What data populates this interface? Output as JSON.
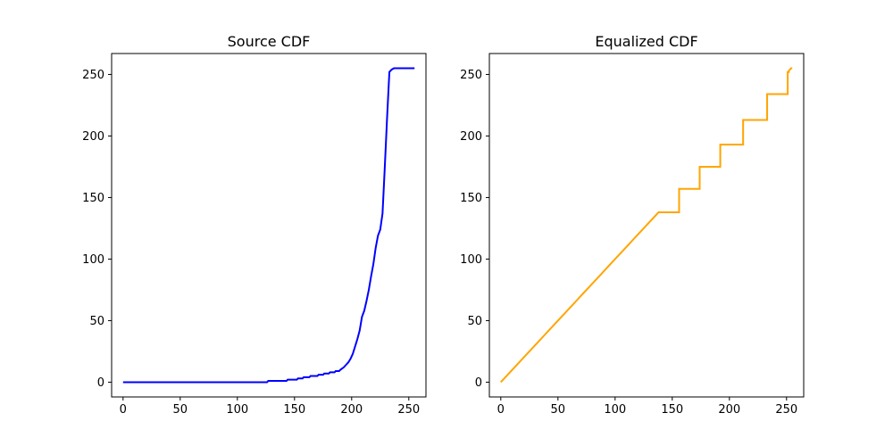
{
  "figure": {
    "background": "#ffffff"
  },
  "chart_data": [
    {
      "type": "line",
      "title": "Source CDF",
      "xlabel": "",
      "ylabel": "",
      "xlim": [
        -10,
        265
      ],
      "ylim": [
        -12,
        267
      ],
      "xticks": [
        0,
        50,
        100,
        150,
        200,
        250
      ],
      "yticks": [
        0,
        50,
        100,
        150,
        200,
        250
      ],
      "grid": false,
      "color": "#0000ff",
      "series": [
        {
          "x": [
            0,
            126,
            127,
            143,
            144,
            152,
            153,
            157,
            158,
            163,
            164,
            170,
            171,
            175,
            176,
            180,
            181,
            185,
            186,
            189,
            190,
            193,
            195,
            197,
            199,
            201,
            203,
            205,
            207,
            209,
            211,
            213,
            215,
            217,
            219,
            221,
            223,
            225,
            227,
            229,
            231,
            233,
            235,
            237,
            239,
            241,
            243,
            244,
            245,
            246,
            255
          ],
          "y": [
            0,
            0,
            1,
            1,
            2,
            2,
            3,
            3,
            4,
            4,
            5,
            5,
            6,
            6,
            7,
            7,
            8,
            8,
            9,
            9,
            10,
            12,
            14,
            16,
            19,
            23,
            29,
            35,
            42,
            53,
            58,
            66,
            75,
            86,
            96,
            109,
            119,
            124,
            137,
            175,
            215,
            252,
            254,
            255,
            255,
            255,
            255,
            255,
            255,
            255,
            255
          ]
        }
      ]
    },
    {
      "type": "line",
      "title": "Equalized CDF",
      "xlabel": "",
      "ylabel": "",
      "xlim": [
        -10,
        265
      ],
      "ylim": [
        -12,
        267
      ],
      "xticks": [
        0,
        50,
        100,
        150,
        200,
        250
      ],
      "yticks": [
        0,
        50,
        100,
        150,
        200,
        250
      ],
      "grid": false,
      "color": "#ffa500",
      "series": [
        {
          "x": [
            0,
            20,
            20,
            23,
            23,
            26,
            26,
            29,
            29,
            32,
            32,
            35,
            35,
            38,
            38,
            41,
            41,
            44,
            44,
            48,
            48,
            51,
            51,
            54,
            54,
            57,
            57,
            60,
            60,
            63,
            63,
            66,
            66,
            69,
            69,
            73,
            73,
            77,
            77,
            81,
            81,
            84,
            84,
            88,
            88,
            92,
            92,
            97,
            97,
            102,
            102,
            107,
            107,
            112,
            112,
            115,
            115,
            118,
            118,
            121,
            121,
            124,
            124,
            128,
            128,
            133,
            133,
            138,
            138,
            156,
            156,
            174,
            174,
            192,
            192,
            212,
            212,
            233,
            233,
            251,
            251,
            252,
            252,
            254,
            255
          ],
          "y": [
            0,
            20,
            20,
            23,
            23,
            26,
            26,
            29,
            29,
            32,
            32,
            35,
            35,
            38,
            38,
            41,
            41,
            44,
            44,
            48,
            48,
            51,
            51,
            54,
            54,
            57,
            57,
            60,
            60,
            63,
            63,
            66,
            66,
            69,
            69,
            73,
            73,
            77,
            77,
            81,
            81,
            84,
            84,
            88,
            88,
            92,
            92,
            97,
            97,
            102,
            102,
            107,
            107,
            112,
            112,
            115,
            115,
            118,
            118,
            121,
            121,
            124,
            124,
            128,
            128,
            133,
            133,
            138,
            138,
            138,
            157,
            157,
            175,
            175,
            193,
            193,
            213,
            213,
            234,
            234,
            252,
            252,
            253,
            255,
            255
          ]
        }
      ]
    }
  ]
}
